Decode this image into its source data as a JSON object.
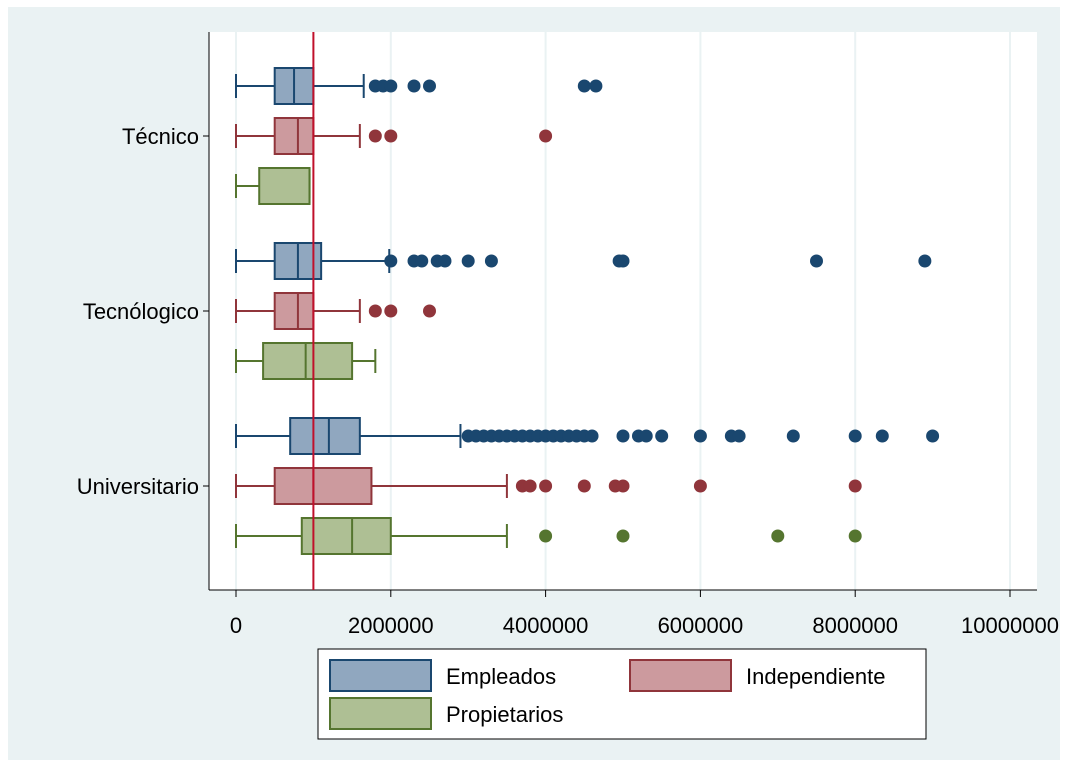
{
  "chart_data": {
    "type": "box",
    "orientation": "horizontal",
    "title": "",
    "xlabel": "",
    "ylabel": "",
    "xlim": [
      -300000,
      10300000
    ],
    "x_ticks": [
      0,
      2000000,
      4000000,
      6000000,
      8000000,
      10000000
    ],
    "x_tick_labels": [
      "0",
      "2000000",
      "4000000",
      "6000000",
      "8000000",
      "10000000"
    ],
    "grid": true,
    "reference_line": {
      "x": 1000000,
      "color": "#c0102b"
    },
    "categories": [
      "Técnico",
      "Tecnólogico",
      "Universitario"
    ],
    "series": [
      {
        "name": "Empleados",
        "fill": "#90a7bf",
        "stroke": "#1a476f",
        "boxes": [
          {
            "category": "Técnico",
            "whisker_low": 0,
            "q1": 500000,
            "median": 750000,
            "q3": 1000000,
            "whisker_high": 1650000,
            "outliers": [
              1800000,
              1900000,
              2000000,
              2300000,
              2500000,
              4500000,
              4650000
            ]
          },
          {
            "category": "Tecnólogico",
            "whisker_low": 0,
            "q1": 500000,
            "median": 800000,
            "q3": 1100000,
            "whisker_high": 1980000,
            "outliers": [
              2000000,
              2300000,
              2400000,
              2600000,
              2700000,
              3000000,
              3300000,
              4950000,
              5000000,
              7500000,
              8900000
            ]
          },
          {
            "category": "Universitario",
            "whisker_low": 0,
            "q1": 700000,
            "median": 1200000,
            "q3": 1600000,
            "whisker_high": 2900000,
            "outliers": [
              3000000,
              3100000,
              3200000,
              3300000,
              3400000,
              3500000,
              3600000,
              3700000,
              3800000,
              3900000,
              4000000,
              4100000,
              4200000,
              4300000,
              4400000,
              4500000,
              4600000,
              5000000,
              5200000,
              5300000,
              5500000,
              6000000,
              6400000,
              6500000,
              7200000,
              8000000,
              8350000,
              9000000
            ]
          }
        ]
      },
      {
        "name": "Independiente",
        "fill": "#cc9a9e",
        "stroke": "#90353b",
        "boxes": [
          {
            "category": "Técnico",
            "whisker_low": 0,
            "q1": 500000,
            "median": 800000,
            "q3": 1000000,
            "whisker_high": 1600000,
            "outliers": [
              1800000,
              2000000,
              4000000
            ]
          },
          {
            "category": "Tecnólogico",
            "whisker_low": 0,
            "q1": 500000,
            "median": 800000,
            "q3": 1000000,
            "whisker_high": 1600000,
            "outliers": [
              1800000,
              2000000,
              2500000
            ]
          },
          {
            "category": "Universitario",
            "whisker_low": 0,
            "q1": 500000,
            "median": 1000000,
            "q3": 1750000,
            "whisker_high": 3500000,
            "outliers": [
              3700000,
              3800000,
              4000000,
              4500000,
              4900000,
              5000000,
              6000000,
              8000000
            ]
          }
        ]
      },
      {
        "name": "Propietarios",
        "fill": "#aebf94",
        "stroke": "#55752f",
        "boxes": [
          {
            "category": "Técnico",
            "whisker_low": 0,
            "q1": 300000,
            "median": 950000,
            "q3": 950000,
            "whisker_high": 950000,
            "outliers": []
          },
          {
            "category": "Tecnólogico",
            "whisker_low": 0,
            "q1": 350000,
            "median": 900000,
            "q3": 1500000,
            "whisker_high": 1800000,
            "outliers": []
          },
          {
            "category": "Universitario",
            "whisker_low": 0,
            "q1": 850000,
            "median": 1500000,
            "q3": 2000000,
            "whisker_high": 3500000,
            "outliers": [
              4000000,
              5000000,
              7000000,
              8000000
            ]
          }
        ]
      }
    ],
    "legend": {
      "position": "bottom",
      "entries": [
        "Empleados",
        "Independiente",
        "Propietarios"
      ]
    },
    "colors": {
      "outer_background": "#eaf2f3",
      "plot_background": "#ffffff",
      "grid": "#eaf2f3",
      "axis": "#000000"
    }
  }
}
